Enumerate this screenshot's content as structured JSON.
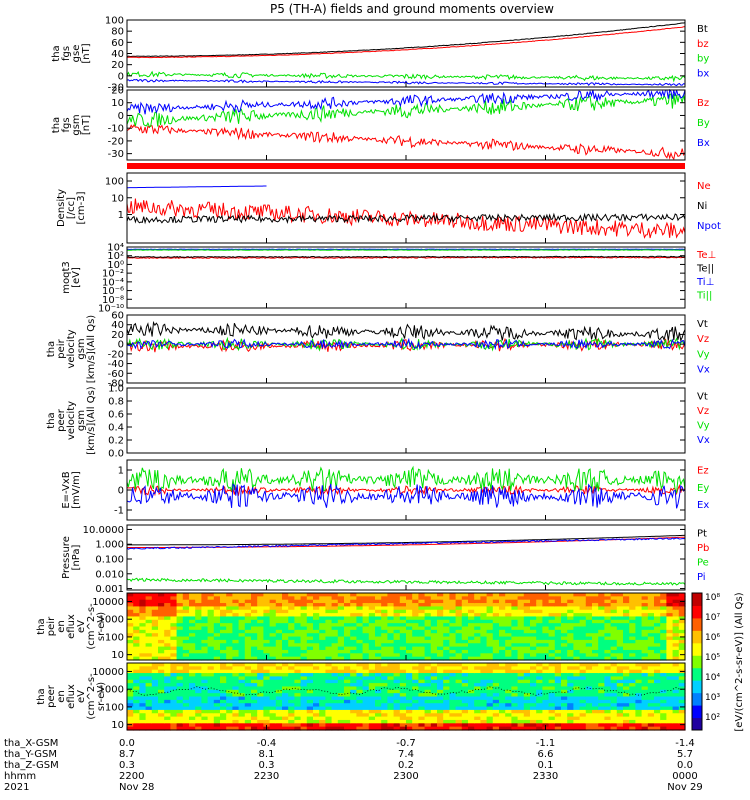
{
  "title": "P5 (TH-A) fields and ground moments overview",
  "colors": {
    "black": "#000000",
    "red": "#ff0000",
    "green": "#00e000",
    "blue": "#0000ff"
  },
  "chart_data": [
    {
      "type": "line",
      "id": "fgs_gse",
      "ylabel": [
        "tha",
        "fgs",
        "gse",
        "[nT]"
      ],
      "ylim": [
        -20,
        100
      ],
      "yticks": [
        -20,
        0,
        20,
        40,
        60,
        80,
        100
      ],
      "series": [
        {
          "name": "Bt",
          "color": "black",
          "shape": "rise",
          "start": 35,
          "end": 95
        },
        {
          "name": "bz",
          "color": "red",
          "shape": "rise",
          "start": 33,
          "end": 88
        },
        {
          "name": "by",
          "color": "green",
          "shape": "flat",
          "start": 3,
          "end": -5,
          "noise": 3
        },
        {
          "name": "bx",
          "color": "blue",
          "shape": "flat",
          "start": -8,
          "end": -16,
          "noise": 1.5
        }
      ]
    },
    {
      "type": "line",
      "id": "fgs_gsm",
      "ylabel": [
        "tha",
        "fgs",
        "gsm",
        "[nT]"
      ],
      "ylim": [
        -35,
        20
      ],
      "yticks": [
        -30,
        -20,
        -10,
        0,
        10,
        20
      ],
      "series": [
        {
          "name": "Bz",
          "color": "red",
          "shape": "flat",
          "start": -10,
          "end": -30,
          "noise": 3
        },
        {
          "name": "By",
          "color": "green",
          "shape": "flat",
          "start": -4,
          "end": 12,
          "noise": 4
        },
        {
          "name": "Bx",
          "color": "blue",
          "shape": "flat",
          "start": 5,
          "end": 18,
          "noise": 3
        }
      ]
    },
    {
      "type": "line",
      "id": "density",
      "ylabel": [
        "Density",
        "[/cc]",
        "[cm-3]"
      ],
      "log": true,
      "ylim": [
        0.02,
        300
      ],
      "yticks": [
        1,
        10,
        100
      ],
      "yticklabels": [
        "1",
        "10",
        "100"
      ],
      "series": [
        {
          "name": "Ne",
          "color": "red",
          "shape": "flat",
          "start": 3,
          "end": 0.1,
          "noise": 0.5
        },
        {
          "name": "Ni",
          "color": "black",
          "shape": "flat",
          "start": 0.5,
          "end": 0.7,
          "noise": 0.2
        },
        {
          "name": "Npot",
          "color": "blue",
          "shape": "partial",
          "start": 40,
          "end": 100,
          "stop": 0.25
        }
      ]
    },
    {
      "type": "line",
      "id": "temp",
      "ylabel": [
        "moqt3",
        "[eV]"
      ],
      "log": true,
      "ylim": [
        1e-10,
        10000.0
      ],
      "yticks": [
        1e-10,
        1e-08,
        1e-06,
        0.0001,
        0.01,
        1,
        100,
        10000
      ],
      "yticklabels": [
        "10⁻¹⁰",
        "10⁻⁸",
        "10⁻⁶",
        "10⁻⁴",
        "10⁻²",
        "10⁰",
        "10²",
        "10⁴"
      ],
      "series": [
        {
          "name": "Te⊥",
          "color": "red",
          "shape": "flat",
          "start": 30,
          "end": 40,
          "noise": 0.1
        },
        {
          "name": "Te||",
          "color": "black",
          "shape": "flat",
          "start": 50,
          "end": 60,
          "noise": 0.1
        },
        {
          "name": "Ti⊥",
          "color": "blue",
          "shape": "flat",
          "start": 3000,
          "end": 3000,
          "noise": 0.05
        },
        {
          "name": "Ti||",
          "color": "green",
          "shape": "flat",
          "start": 2000,
          "end": 2000,
          "noise": 0.05
        }
      ]
    },
    {
      "type": "line",
      "id": "peir_vel",
      "ylabel": [
        "tha",
        "peir",
        "velocity",
        "gsm",
        "[km/s](All Qs)"
      ],
      "ylim": [
        -80,
        60
      ],
      "yticks": [
        -80,
        -60,
        -40,
        -20,
        0,
        20,
        40,
        60
      ],
      "series": [
        {
          "name": "Vt",
          "color": "black",
          "shape": "flat",
          "start": 30,
          "end": 20,
          "noise": 10
        },
        {
          "name": "Vz",
          "color": "red",
          "shape": "flat",
          "start": -5,
          "end": 0,
          "noise": 8
        },
        {
          "name": "Vy",
          "color": "green",
          "shape": "flat",
          "start": 0,
          "end": 0,
          "noise": 8
        },
        {
          "name": "Vx",
          "color": "blue",
          "shape": "flat",
          "start": 0,
          "end": 0,
          "noise": 6
        }
      ]
    },
    {
      "type": "line",
      "id": "peer_vel",
      "ylabel": [
        "tha",
        "peer",
        "velocity",
        "gsm",
        "[km/s](All Qs)"
      ],
      "ylim": [
        0,
        1
      ],
      "yticks": [
        0,
        0.2,
        0.4,
        0.6,
        0.8,
        1.0
      ],
      "yticklabels": [
        "0.0",
        "0.2",
        "0.4",
        "0.6",
        "0.8",
        "1.0"
      ],
      "series": [
        {
          "name": "Vt",
          "color": "black",
          "shape": "none"
        },
        {
          "name": "Vz",
          "color": "red",
          "shape": "none"
        },
        {
          "name": "Vy",
          "color": "green",
          "shape": "none"
        },
        {
          "name": "Vx",
          "color": "blue",
          "shape": "none"
        }
      ]
    },
    {
      "type": "line",
      "id": "efield",
      "ylabel": [
        "E=-VxB",
        "[mV/m]"
      ],
      "ylim": [
        -1.5,
        1.5
      ],
      "yticks": [
        -1,
        0,
        1
      ],
      "series": [
        {
          "name": "Ez",
          "color": "red",
          "shape": "flat",
          "start": 0,
          "end": 0,
          "noise": 0.15
        },
        {
          "name": "Ey",
          "color": "green",
          "shape": "flat",
          "start": 0.5,
          "end": 0.5,
          "noise": 0.4
        },
        {
          "name": "Ex",
          "color": "blue",
          "shape": "flat",
          "start": -0.3,
          "end": -0.3,
          "noise": 0.4
        }
      ]
    },
    {
      "type": "line",
      "id": "pressure",
      "ylabel": [
        "Pressure",
        "[nPa]"
      ],
      "log": true,
      "ylim": [
        0.0008,
        20
      ],
      "yticks": [
        0.001,
        0.01,
        0.1,
        1,
        10
      ],
      "yticklabels": [
        "0.001",
        "0.010",
        "0.100",
        "1.000",
        "10.0000"
      ],
      "series": [
        {
          "name": "Pt",
          "color": "black",
          "shape": "rise",
          "start": 0.9,
          "end": 4
        },
        {
          "name": "Pb",
          "color": "red",
          "shape": "rise",
          "start": 0.6,
          "end": 3
        },
        {
          "name": "Pe",
          "color": "green",
          "shape": "flat",
          "start": 0.004,
          "end": 0.002,
          "noise": 0.1
        },
        {
          "name": "Pi",
          "color": "blue",
          "shape": "flat",
          "start": 0.5,
          "end": 2.5,
          "noise": 0.05
        }
      ]
    },
    {
      "type": "heatmap",
      "id": "peir_spec",
      "ylabel": [
        "tha",
        "peir",
        "en",
        "eflux",
        "eV",
        "(cm^2-s-",
        "sr-eV)"
      ],
      "log": true,
      "ylim": [
        5,
        30000
      ],
      "yticks": [
        10,
        100,
        1000,
        10000
      ],
      "yticklabels": [
        "10",
        "100",
        "1000",
        "10000"
      ]
    },
    {
      "type": "heatmap",
      "id": "peer_spec",
      "ylabel": [
        "tha",
        "peer",
        "en",
        "eflux",
        "eV",
        "(cm^2-s-",
        "sr-eV)"
      ],
      "log": true,
      "ylim": [
        5,
        30000
      ],
      "yticks": [
        10,
        100,
        1000,
        10000
      ],
      "yticklabels": [
        "10",
        "100",
        "1000",
        "10000"
      ]
    }
  ],
  "colorbar": {
    "label": "[eV/(cm^2-s-sr-eV)] (All Qs)",
    "ticks": [
      "10⁸",
      "10⁷",
      "10⁶",
      "10⁵",
      "10⁴",
      "10³",
      "10²"
    ]
  },
  "xaxis": {
    "rows": [
      {
        "label": "tha_X-GSM",
        "values": [
          "0.0",
          "-0.4",
          "-0.7",
          "-1.1",
          "-1.4"
        ]
      },
      {
        "label": "tha_Y-GSM",
        "values": [
          "8.7",
          "8.1",
          "7.4",
          "6.6",
          "5.7"
        ]
      },
      {
        "label": "tha_Z-GSM",
        "values": [
          "0.3",
          "0.3",
          "0.2",
          "0.1",
          "0.0"
        ]
      },
      {
        "label": "hhmm",
        "values": [
          "2200",
          "2230",
          "2300",
          "2330",
          "0000"
        ]
      },
      {
        "label": "2021",
        "values": [
          "Nov 28",
          "",
          "",
          "",
          "Nov 29"
        ]
      }
    ]
  }
}
